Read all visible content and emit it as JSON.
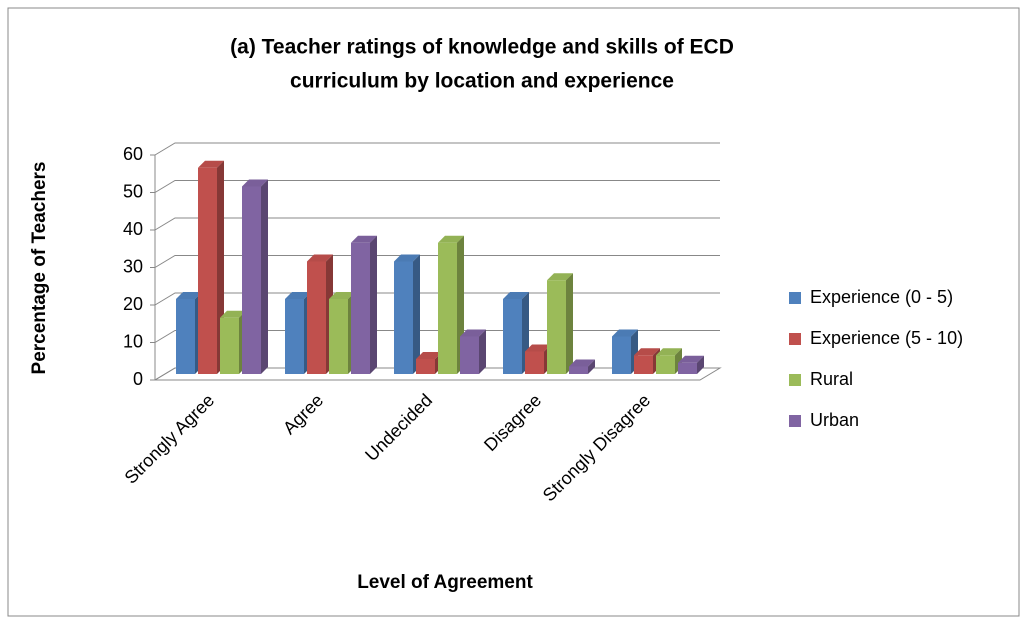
{
  "chart_data": {
    "type": "bar3d",
    "title": [
      "(a) Teacher ratings of knowledge and skills of ECD",
      "curriculum by location and experience"
    ],
    "x_label": "Level of Agreement",
    "y_label": "Percentage of Teachers",
    "categories": [
      "Strongly Agree",
      "Agree",
      "Undecided",
      "Disagree",
      "Strongly Disagree"
    ],
    "series": [
      {
        "name": "Experience (0 - 5)",
        "color": "#4f81bd",
        "values": [
          20,
          20,
          30,
          20,
          10
        ]
      },
      {
        "name": "Experience (5 - 10)",
        "color": "#c0504d",
        "values": [
          55,
          30,
          4,
          6,
          5
        ]
      },
      {
        "name": "Rural",
        "color": "#9bbb59",
        "values": [
          15,
          20,
          35,
          25,
          5
        ]
      },
      {
        "name": "Urban",
        "color": "#8064a2",
        "values": [
          50,
          35,
          10,
          2,
          3
        ]
      }
    ],
    "ylim": [
      0,
      60
    ],
    "yticks": [
      0,
      10,
      20,
      30,
      40,
      50,
      60
    ],
    "grid": true,
    "legend": "right"
  }
}
